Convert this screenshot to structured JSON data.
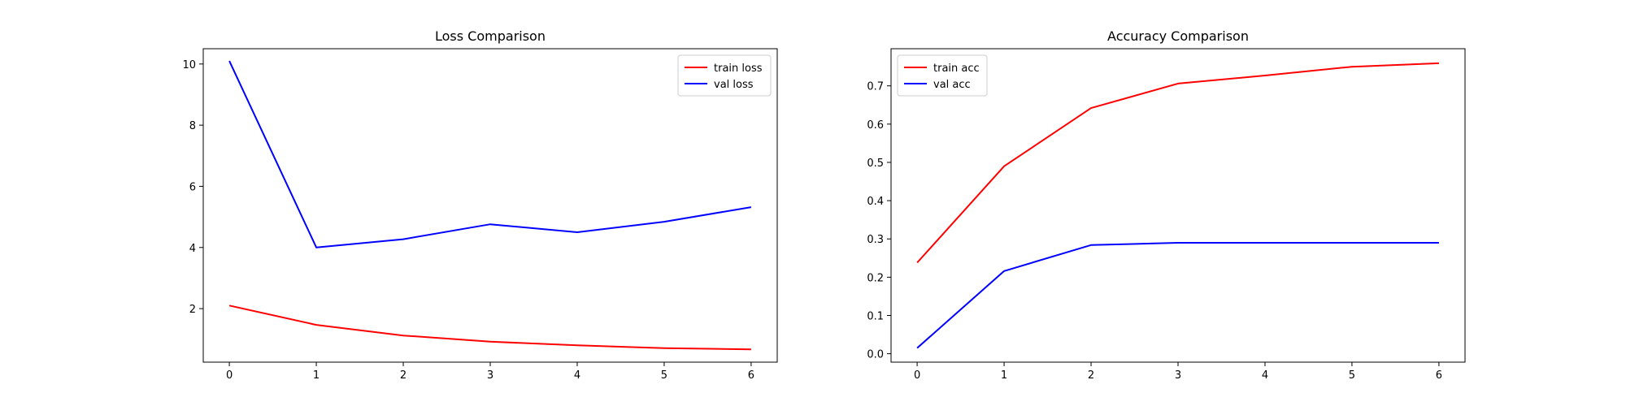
{
  "chart_data": [
    {
      "type": "line",
      "title": "Loss Comparison",
      "xlabel": "",
      "ylabel": "",
      "x": [
        0,
        1,
        2,
        3,
        4,
        5,
        6
      ],
      "xlim": [
        -0.3,
        6.3
      ],
      "ylim": [
        0.25,
        10.5
      ],
      "xticks": [
        0,
        1,
        2,
        3,
        4,
        5,
        6
      ],
      "yticks": [
        2,
        4,
        6,
        8,
        10
      ],
      "grid": false,
      "legend": "top-right",
      "series": [
        {
          "name": "train loss",
          "color": "#ff0000",
          "values": [
            2.1,
            1.47,
            1.12,
            0.92,
            0.8,
            0.71,
            0.67
          ]
        },
        {
          "name": "val loss",
          "color": "#0000ff",
          "values": [
            10.1,
            4.0,
            4.27,
            4.76,
            4.5,
            4.84,
            5.32
          ]
        }
      ]
    },
    {
      "type": "line",
      "title": "Accuracy Comparison",
      "xlabel": "",
      "ylabel": "",
      "x": [
        0,
        1,
        2,
        3,
        4,
        5,
        6
      ],
      "xlim": [
        -0.3,
        6.3
      ],
      "ylim": [
        -0.022,
        0.797
      ],
      "xticks": [
        0,
        1,
        2,
        3,
        4,
        5,
        6
      ],
      "yticks": [
        0.0,
        0.1,
        0.2,
        0.3,
        0.4,
        0.5,
        0.6,
        0.7
      ],
      "grid": false,
      "legend": "top-left",
      "series": [
        {
          "name": "train acc",
          "color": "#ff0000",
          "values": [
            0.238,
            0.49,
            0.642,
            0.706,
            0.727,
            0.75,
            0.759
          ]
        },
        {
          "name": "val acc",
          "color": "#0000ff",
          "values": [
            0.015,
            0.216,
            0.284,
            0.29,
            0.29,
            0.29,
            0.29
          ]
        }
      ]
    }
  ]
}
